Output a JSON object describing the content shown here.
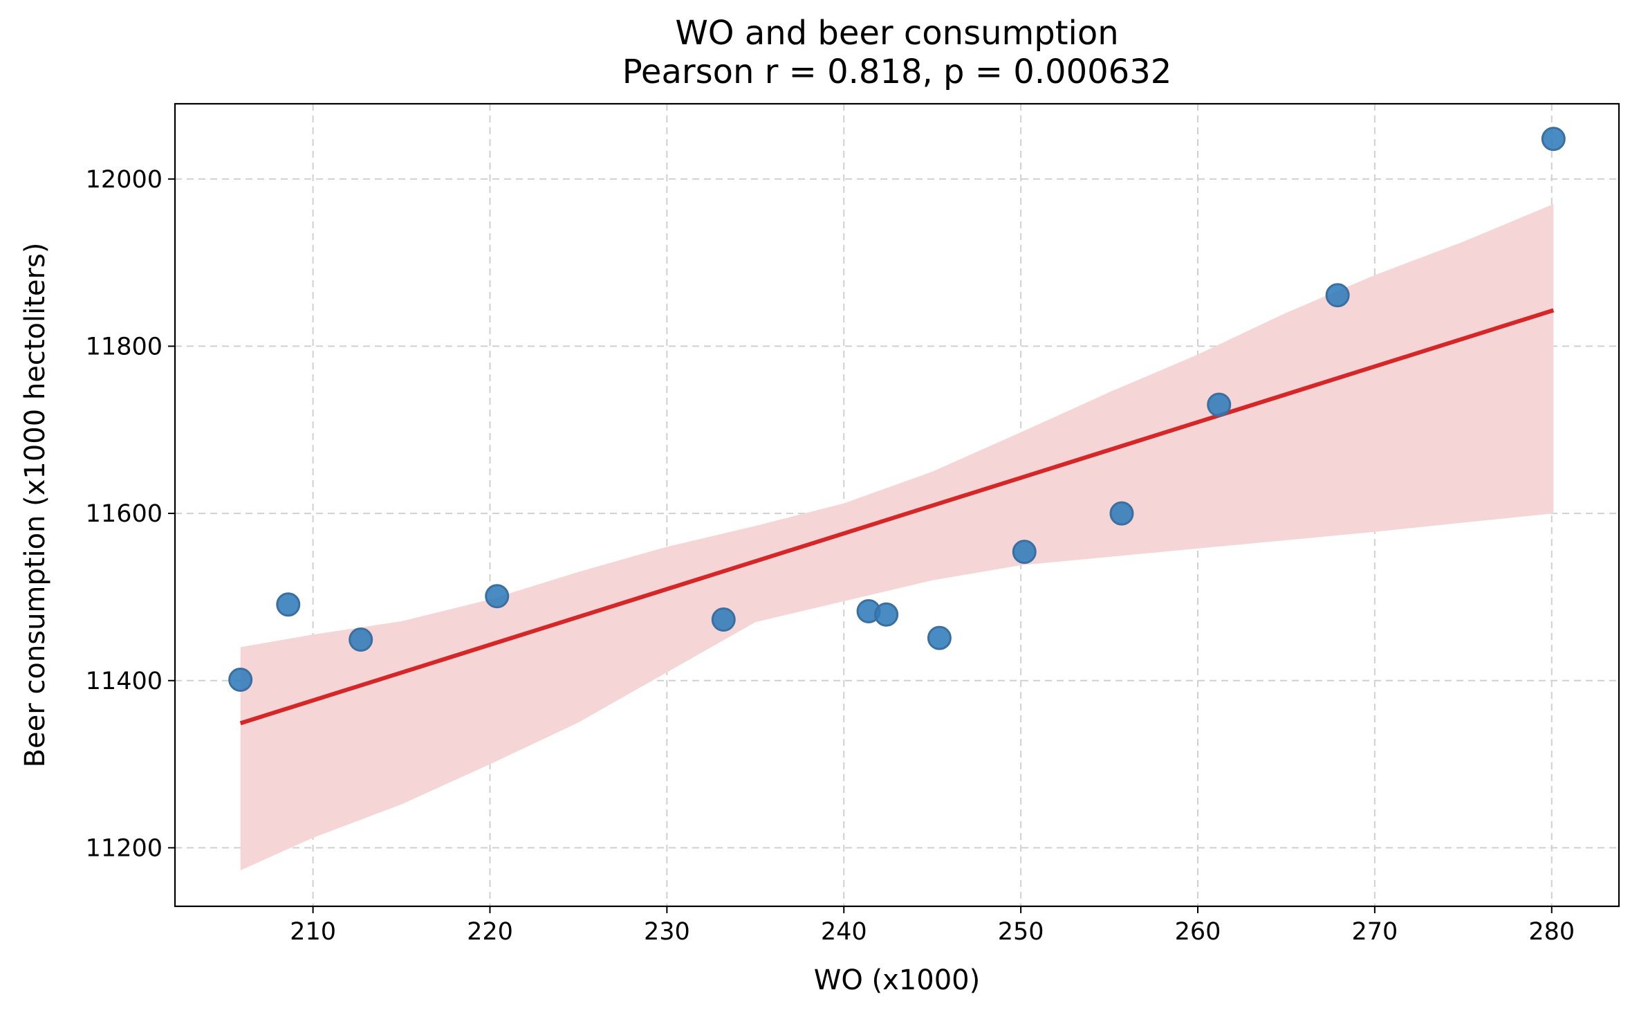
{
  "chart_data": {
    "type": "scatter",
    "title": "WO and beer consumption",
    "subtitle": "Pearson r = 0.818, p = 0.000632",
    "xlabel": "WO (x1000)",
    "ylabel": "Beer consumption (x1000 hectoliters)",
    "xlim": [
      202.2,
      283.8
    ],
    "ylim": [
      11130,
      12090
    ],
    "xticks": [
      210,
      220,
      230,
      240,
      250,
      260,
      270,
      280
    ],
    "yticks": [
      11200,
      11400,
      11600,
      11800,
      12000
    ],
    "grid": true,
    "points": [
      {
        "x": 205.9,
        "y": 11401
      },
      {
        "x": 208.6,
        "y": 11491
      },
      {
        "x": 212.7,
        "y": 11449
      },
      {
        "x": 220.4,
        "y": 11501
      },
      {
        "x": 233.2,
        "y": 11473
      },
      {
        "x": 241.4,
        "y": 11483
      },
      {
        "x": 242.4,
        "y": 11479
      },
      {
        "x": 245.4,
        "y": 11451
      },
      {
        "x": 250.2,
        "y": 11554
      },
      {
        "x": 255.7,
        "y": 11600
      },
      {
        "x": 261.2,
        "y": 11730
      },
      {
        "x": 267.9,
        "y": 11861
      },
      {
        "x": 280.1,
        "y": 12048
      }
    ],
    "regression": {
      "x": [
        205.9,
        280.1
      ],
      "y": [
        11349,
        11843
      ]
    },
    "confidence_band": {
      "x": [
        205.9,
        210,
        215,
        220,
        225,
        230,
        235,
        240,
        245,
        250,
        255,
        260,
        265,
        270,
        275,
        280.1
      ],
      "lower": [
        11173,
        11212,
        11252,
        11300,
        11350,
        11410,
        11470,
        11495,
        11520,
        11538,
        11548,
        11558,
        11568,
        11578,
        11589,
        11600
      ],
      "upper": [
        11440,
        11455,
        11471,
        11497,
        11530,
        11560,
        11585,
        11612,
        11650,
        11697,
        11745,
        11790,
        11840,
        11885,
        11925,
        11970
      ]
    },
    "colors": {
      "points": "#2f7cbb",
      "points_edge": "#3a6fa0",
      "line": "#d62728",
      "band": "#f5d5d6"
    }
  }
}
